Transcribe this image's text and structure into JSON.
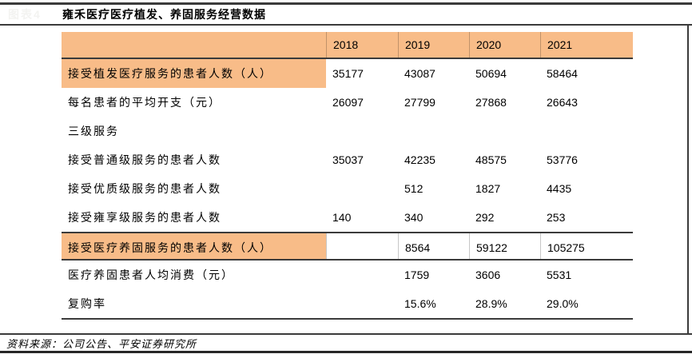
{
  "figure_label": "图表4",
  "title": "雍禾医疗医疗植发、养固服务经营数据",
  "source": "资料来源：公司公告、平安证券研究所",
  "colors": {
    "highlight_orange": "#F8BC88",
    "rule_dark": "#3B3B3B"
  },
  "table": {
    "columns": [
      "2018",
      "2019",
      "2020",
      "2021"
    ],
    "rows": [
      {
        "label": "接受植发医疗服务的患者人数（人）",
        "values": [
          "35177",
          "43087",
          "50694",
          "58464"
        ],
        "highlight": true,
        "bordered": false
      },
      {
        "label": "每名患者的平均开支（元）",
        "values": [
          "26097",
          "27799",
          "27868",
          "26643"
        ],
        "highlight": false,
        "bordered": false
      },
      {
        "label": "三级服务",
        "values": [
          "",
          "",
          "",
          ""
        ],
        "highlight": false,
        "bordered": false
      },
      {
        "label": "接受普通级服务的患者人数",
        "values": [
          "35037",
          "42235",
          "48575",
          "53776"
        ],
        "highlight": false,
        "bordered": false
      },
      {
        "label": "接受优质级服务的患者人数",
        "values": [
          "",
          "512",
          "1827",
          "4435"
        ],
        "highlight": false,
        "bordered": false
      },
      {
        "label": "接受雍享级服务的患者人数",
        "values": [
          "140",
          "340",
          "292",
          "253"
        ],
        "highlight": false,
        "bordered": false
      },
      {
        "label": "接受医疗养固服务的患者人数（人）",
        "values": [
          "",
          "8564",
          "59122",
          "105275"
        ],
        "highlight": true,
        "bordered": true
      },
      {
        "label": "医疗养固患者人均消费（元）",
        "values": [
          "",
          "1759",
          "3606",
          "5531"
        ],
        "highlight": false,
        "bordered": false
      },
      {
        "label": "复购率",
        "values": [
          "",
          "15.6%",
          "28.9%",
          "29.0%"
        ],
        "highlight": false,
        "bordered": false
      }
    ]
  }
}
